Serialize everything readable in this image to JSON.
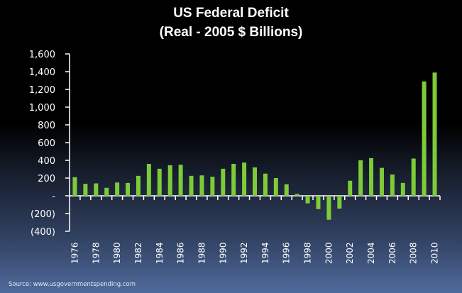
{
  "chart_data": {
    "type": "bar",
    "title": "US Federal Deficit",
    "subtitle": "(Real - 2005 $ Billions)",
    "xlabel": "",
    "ylabel": "",
    "ylim": [
      -400,
      1600
    ],
    "yticks": [
      1600,
      1400,
      1200,
      1000,
      800,
      600,
      400,
      200,
      0,
      -200,
      -400
    ],
    "ytick_labels": [
      "1,600",
      "1,400",
      "1,200",
      "1,000",
      "800",
      "600",
      "400",
      "200",
      "-",
      "(200)",
      "(400)"
    ],
    "categories": [
      "1976",
      "1977",
      "1978",
      "1979",
      "1980",
      "1981",
      "1982",
      "1983",
      "1984",
      "1985",
      "1986",
      "1987",
      "1988",
      "1989",
      "1990",
      "1991",
      "1992",
      "1993",
      "1994",
      "1995",
      "1996",
      "1997",
      "1998",
      "1999",
      "2000",
      "2001",
      "2002",
      "2003",
      "2004",
      "2005",
      "2006",
      "2007",
      "2008",
      "2009",
      "2010"
    ],
    "xtick_labels": [
      "1976",
      "1978",
      "1980",
      "1982",
      "1984",
      "1986",
      "1988",
      "1990",
      "1992",
      "1994",
      "1996",
      "1998",
      "2000",
      "2002",
      "2004",
      "2006",
      "2008",
      "2010"
    ],
    "values": [
      210,
      135,
      140,
      90,
      150,
      145,
      225,
      360,
      305,
      345,
      350,
      225,
      230,
      215,
      305,
      360,
      375,
      320,
      250,
      200,
      130,
      22,
      -85,
      -150,
      -270,
      -145,
      170,
      400,
      425,
      315,
      240,
      145,
      420,
      1290,
      1390
    ],
    "grid": false,
    "legend": "none",
    "bar_color": "#7ecb3a",
    "axis_color": "#ffffff"
  },
  "source": "Source: www.usgovernmentspending.com"
}
